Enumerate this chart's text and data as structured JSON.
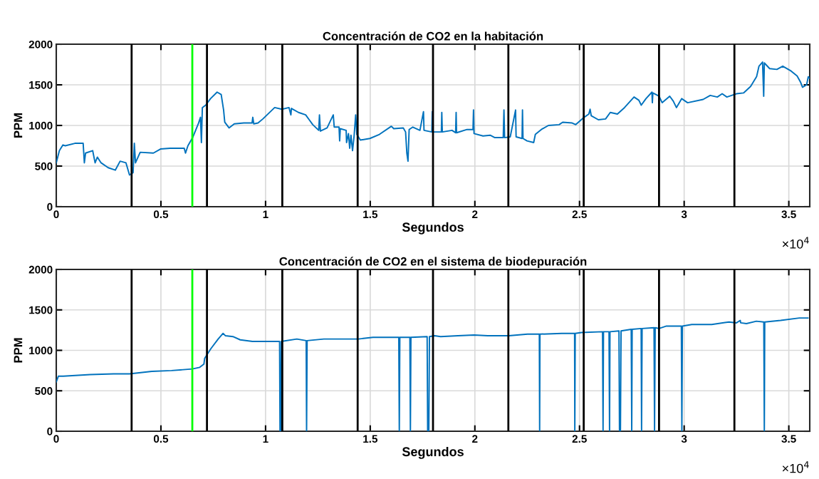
{
  "chart_data": [
    {
      "type": "line",
      "title": "Concentración de CO2 en la habitación",
      "xlabel": "Segundos",
      "ylabel": "PPM",
      "xlim": [
        0,
        3.6
      ],
      "ylim": [
        0,
        2000
      ],
      "xticks": [
        0,
        0.5,
        1,
        1.5,
        2,
        2.5,
        3,
        3.5
      ],
      "yticks": [
        0,
        500,
        1000,
        1500,
        2000
      ],
      "grid": true,
      "marker": "none",
      "line_style": "solid",
      "annotations": [
        "×10$^{4}$"
      ],
      "ref_lines": [
        {
          "axis": "x",
          "value": 0.36,
          "color": "#000000"
        },
        {
          "axis": "x",
          "value": 0.65,
          "color": "#00ff00"
        },
        {
          "axis": "x",
          "value": 0.72,
          "color": "#000000"
        },
        {
          "axis": "x",
          "value": 1.08,
          "color": "#000000"
        },
        {
          "axis": "x",
          "value": 1.44,
          "color": "#000000"
        },
        {
          "axis": "x",
          "value": 1.8,
          "color": "#000000"
        },
        {
          "axis": "x",
          "value": 2.16,
          "color": "#000000"
        },
        {
          "axis": "x",
          "value": 2.52,
          "color": "#000000"
        },
        {
          "axis": "x",
          "value": 2.88,
          "color": "#000000"
        },
        {
          "axis": "x",
          "value": 3.24,
          "color": "#000000"
        }
      ],
      "series": [
        {
          "color": "#0072bd",
          "x": [
            0,
            0.015,
            0.032,
            0.043,
            0.089,
            0.1285,
            0.1342,
            0.14,
            0.174,
            0.1855,
            0.1965,
            0.214,
            0.248,
            0.282,
            0.305,
            0.333,
            0.35,
            0.367,
            0.373,
            0.3785,
            0.401,
            0.464,
            0.498,
            0.5435,
            0.6115,
            0.6175,
            0.629,
            0.6515,
            0.68,
            0.689,
            0.6935,
            0.698,
            0.714,
            0.737,
            0.7685,
            0.788,
            0.7995,
            0.805,
            0.8255,
            0.8505,
            0.896,
            0.9355,
            0.939,
            0.9435,
            0.964,
            0.987,
            1.0435,
            1.078,
            1.112,
            1.121,
            1.1235,
            1.1575,
            1.1915,
            1.2085,
            1.2255,
            1.254,
            1.2575,
            1.262,
            1.294,
            1.3235,
            1.328,
            1.351,
            1.354,
            1.357,
            1.385,
            1.387,
            1.396,
            1.402,
            1.408,
            1.4155,
            1.423,
            1.4305,
            1.436,
            1.453,
            1.4985,
            1.544,
            1.601,
            1.6125,
            1.658,
            1.669,
            1.675,
            1.6805,
            1.686,
            1.7035,
            1.7375,
            1.7545,
            1.757,
            1.7945,
            1.7965,
            1.799,
            1.84,
            1.842,
            1.8445,
            1.891,
            1.908,
            1.9105,
            1.9125,
            1.9625,
            1.991,
            1.9935,
            1.996,
            2.039,
            2.073,
            2.0955,
            2.1355,
            2.139,
            2.142,
            2.169,
            2.1945,
            2.197,
            2.2255,
            2.2275,
            2.23,
            2.249,
            2.281,
            2.289,
            2.3175,
            2.3515,
            2.4025,
            2.4195,
            2.465,
            2.482,
            2.522,
            2.5445,
            2.5505,
            2.556,
            2.59,
            2.6245,
            2.647,
            2.681,
            2.715,
            2.7605,
            2.7835,
            2.795,
            2.8175,
            2.846,
            2.848,
            2.8505,
            2.88,
            2.895,
            2.931,
            2.948,
            2.963,
            2.988,
            3.0165,
            3.0905,
            3.1245,
            3.1585,
            3.1815,
            3.204,
            3.2495,
            3.2835,
            3.3175,
            3.346,
            3.3575,
            3.3745,
            3.38,
            3.383,
            3.4085,
            3.443,
            3.471,
            3.511,
            3.5395,
            3.5565,
            3.5655,
            3.585,
            3.593,
            3.6
          ],
          "values": [
            540,
            690,
            760,
            750,
            780,
            780,
            540,
            660,
            690,
            540,
            610,
            540,
            480,
            450,
            560,
            540,
            390,
            420,
            780,
            540,
            670,
            660,
            710,
            720,
            720,
            660,
            750,
            850,
            1030,
            1100,
            790,
            1220,
            1250,
            1330,
            1410,
            1380,
            1190,
            1040,
            970,
            1020,
            1030,
            1030,
            1100,
            1020,
            1030,
            1080,
            1220,
            1200,
            1220,
            1130,
            1210,
            1160,
            1130,
            1070,
            1010,
            940,
            1130,
            930,
            970,
            1130,
            980,
            980,
            810,
            960,
            940,
            790,
            900,
            720,
            880,
            690,
            870,
            1130,
            890,
            820,
            840,
            890,
            990,
            960,
            970,
            920,
            660,
            560,
            950,
            980,
            940,
            1170,
            940,
            920,
            1170,
            920,
            920,
            1160,
            920,
            940,
            910,
            1160,
            910,
            950,
            950,
            1190,
            900,
            870,
            880,
            850,
            850,
            1190,
            850,
            860,
            1190,
            860,
            840,
            1190,
            840,
            810,
            790,
            890,
            950,
            1000,
            1010,
            1040,
            1030,
            1010,
            1100,
            1140,
            1200,
            1120,
            1070,
            1080,
            1160,
            1140,
            1220,
            1350,
            1310,
            1250,
            1330,
            1410,
            1280,
            1400,
            1360,
            1280,
            1360,
            1300,
            1220,
            1330,
            1280,
            1320,
            1370,
            1350,
            1390,
            1350,
            1390,
            1400,
            1480,
            1600,
            1730,
            1780,
            1360,
            1770,
            1700,
            1690,
            1730,
            1670,
            1610,
            1530,
            1470,
            1500,
            1600,
            1580
          ]
        }
      ]
    },
    {
      "type": "line",
      "title": "Concentración de CO2 en el sistema de biodepuración",
      "xlabel": "Segundos",
      "ylabel": "PPM",
      "xlim": [
        0,
        3.6
      ],
      "ylim": [
        0,
        2000
      ],
      "xticks": [
        0,
        0.5,
        1,
        1.5,
        2,
        2.5,
        3,
        3.5
      ],
      "yticks": [
        0,
        500,
        1000,
        1500,
        2000
      ],
      "grid": true,
      "marker": "none",
      "line_style": "solid",
      "annotations": [
        "×10$^{4}$"
      ],
      "ref_lines": [
        {
          "axis": "x",
          "value": 0.36,
          "color": "#000000"
        },
        {
          "axis": "x",
          "value": 0.65,
          "color": "#00ff00"
        },
        {
          "axis": "x",
          "value": 0.72,
          "color": "#000000"
        },
        {
          "axis": "x",
          "value": 1.08,
          "color": "#000000"
        },
        {
          "axis": "x",
          "value": 1.44,
          "color": "#000000"
        },
        {
          "axis": "x",
          "value": 1.8,
          "color": "#000000"
        },
        {
          "axis": "x",
          "value": 2.16,
          "color": "#000000"
        },
        {
          "axis": "x",
          "value": 2.52,
          "color": "#000000"
        },
        {
          "axis": "x",
          "value": 2.88,
          "color": "#000000"
        },
        {
          "axis": "x",
          "value": 3.24,
          "color": "#000000"
        }
      ],
      "series": [
        {
          "color": "#0072bd",
          "x": [
            0,
            0.01,
            0.0335,
            0.1625,
            0.274,
            0.35,
            0.4565,
            0.5505,
            0.65,
            0.6855,
            0.7055,
            0.709,
            0.7385,
            0.7735,
            0.797,
            0.8085,
            0.844,
            0.879,
            0.9375,
            1.02,
            1.067,
            1.069,
            1.072,
            1.075,
            1.1495,
            1.194,
            1.196,
            1.1985,
            1.2785,
            1.443,
            1.5135,
            1.6365,
            1.639,
            1.6415,
            1.6895,
            1.692,
            1.6945,
            1.772,
            1.7745,
            1.78,
            1.783,
            1.8075,
            1.8365,
            1.9195,
            1.9965,
            2.0615,
            2.1625,
            2.2515,
            2.308,
            2.3095,
            2.311,
            2.415,
            2.4765,
            2.4775,
            2.4795,
            2.5095,
            2.61,
            2.6125,
            2.6145,
            2.641,
            2.6435,
            2.6455,
            2.6885,
            2.691,
            2.6955,
            2.6985,
            2.747,
            2.7495,
            2.7515,
            2.7945,
            2.7965,
            2.799,
            2.856,
            2.8585,
            2.8615,
            2.88,
            2.9155,
            2.9865,
            2.989,
            2.9915,
            3.0365,
            3.1315,
            3.2145,
            3.25,
            3.268,
            3.27,
            3.2975,
            3.345,
            3.3805,
            3.383,
            3.385,
            3.461,
            3.55,
            3.5915
          ],
          "values": [
            610,
            680,
            680,
            700,
            710,
            710,
            740,
            750,
            770,
            790,
            830,
            900,
            1020,
            1140,
            1210,
            1180,
            1170,
            1130,
            1110,
            1110,
            1110,
            0,
            0,
            1110,
            1140,
            1120,
            0,
            1120,
            1140,
            1140,
            1160,
            1160,
            0,
            1160,
            1160,
            0,
            1160,
            1170,
            0,
            0,
            1170,
            1180,
            1170,
            1180,
            1190,
            1180,
            1180,
            1200,
            1200,
            0,
            1200,
            1210,
            1210,
            0,
            1210,
            1220,
            1230,
            0,
            1230,
            1230,
            0,
            1230,
            1240,
            0,
            0,
            1240,
            1260,
            0,
            1260,
            1270,
            0,
            1270,
            1280,
            0,
            1280,
            1270,
            1300,
            1300,
            0,
            1300,
            1320,
            1320,
            1350,
            1340,
            1370,
            1340,
            1330,
            1360,
            1350,
            0,
            1350,
            1370,
            1400,
            1400
          ]
        }
      ]
    }
  ]
}
